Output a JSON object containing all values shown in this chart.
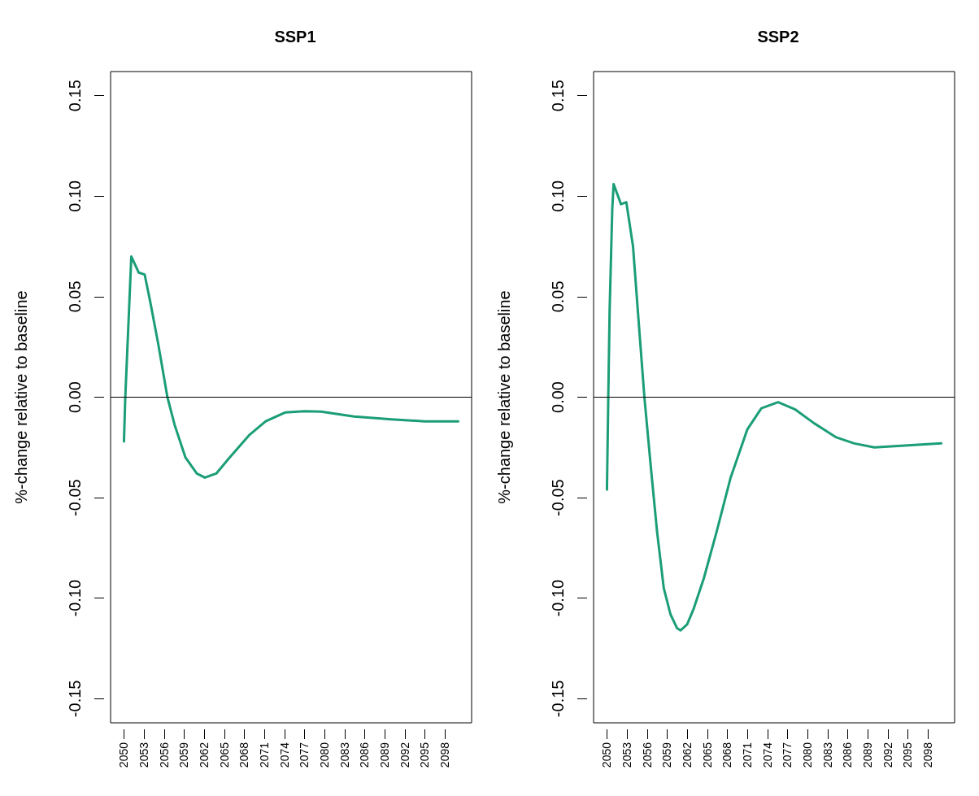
{
  "chart_data": [
    {
      "type": "line",
      "title": "SSP1",
      "ylabel": "%-change relative to baseline",
      "xlim": [
        2048,
        2102
      ],
      "ylim": [
        -0.162,
        0.162
      ],
      "xticks": [
        2050,
        2053,
        2056,
        2059,
        2062,
        2065,
        2068,
        2071,
        2074,
        2077,
        2080,
        2083,
        2086,
        2089,
        2092,
        2095,
        2098
      ],
      "yticks": [
        {
          "value": -0.15,
          "label": "-0.15"
        },
        {
          "value": -0.1,
          "label": "-0.10"
        },
        {
          "value": -0.05,
          "label": "-0.05"
        },
        {
          "value": 0,
          "label": "0.00"
        },
        {
          "value": 0.05,
          "label": "0.05"
        },
        {
          "value": 0.1,
          "label": "0.10"
        },
        {
          "value": 0.15,
          "label": "0.15"
        }
      ],
      "grid": false,
      "marker": "none",
      "line_style": "solid",
      "ref_lines": [
        {
          "axis": "y",
          "value": 0,
          "color": "#000000"
        }
      ],
      "series": [
        {
          "color": "#1b9e77",
          "x": [
            2050,
            2050.2,
            2050.6,
            2051.1,
            2052.2,
            2053.1,
            2053.9,
            2055.1,
            2056.5,
            2057.6,
            2059.2,
            2060.9,
            2062.1,
            2063.8,
            2065.8,
            2068.7,
            2071.2,
            2074.1,
            2077,
            2079.5,
            2084.4,
            2090,
            2095,
            2100
          ],
          "values": [
            -0.022,
            0,
            0.031,
            0.07,
            0.062,
            0.061,
            0.048,
            0.027,
            0,
            -0.014,
            -0.03,
            -0.038,
            -0.04,
            -0.038,
            -0.03,
            -0.019,
            -0.012,
            -0.0076,
            -0.007,
            -0.0072,
            -0.0096,
            -0.011,
            -0.012,
            -0.012
          ]
        }
      ]
    },
    {
      "type": "line",
      "title": "SSP2",
      "ylabel": "%-change relative to baseline",
      "xlim": [
        2048,
        2102
      ],
      "ylim": [
        -0.162,
        0.162
      ],
      "xticks": [
        2050,
        2053,
        2056,
        2059,
        2062,
        2065,
        2068,
        2071,
        2074,
        2077,
        2080,
        2083,
        2086,
        2089,
        2092,
        2095,
        2098
      ],
      "yticks": [
        {
          "value": -0.15,
          "label": "-0.15"
        },
        {
          "value": -0.1,
          "label": "-0.10"
        },
        {
          "value": -0.05,
          "label": "-0.05"
        },
        {
          "value": 0,
          "label": "0.00"
        },
        {
          "value": 0.05,
          "label": "0.05"
        },
        {
          "value": 0.1,
          "label": "0.10"
        },
        {
          "value": 0.15,
          "label": "0.15"
        }
      ],
      "grid": false,
      "marker": "none",
      "line_style": "solid",
      "ref_lines": [
        {
          "axis": "y",
          "value": 0,
          "color": "#000000"
        }
      ],
      "series": [
        {
          "color": "#1b9e77",
          "x": [
            2050,
            2050.2,
            2050.4,
            2050.8,
            2051,
            2052.1,
            2052.9,
            2053.9,
            2054.8,
            2055.6,
            2056.6,
            2057.5,
            2058.5,
            2059.5,
            2060.5,
            2061,
            2062,
            2063,
            2064.5,
            2066.4,
            2068.5,
            2071,
            2073.1,
            2075.6,
            2078.1,
            2081,
            2084.3,
            2087,
            2090,
            2095,
            2100
          ],
          "values": [
            -0.046,
            0,
            0.043,
            0.094,
            0.106,
            0.096,
            0.097,
            0.075,
            0.035,
            0,
            -0.036,
            -0.067,
            -0.095,
            -0.108,
            -0.115,
            -0.116,
            -0.113,
            -0.105,
            -0.09,
            -0.067,
            -0.04,
            -0.016,
            -0.0055,
            -0.0025,
            -0.006,
            -0.013,
            -0.02,
            -0.023,
            -0.025,
            -0.024,
            -0.023
          ]
        }
      ]
    }
  ]
}
